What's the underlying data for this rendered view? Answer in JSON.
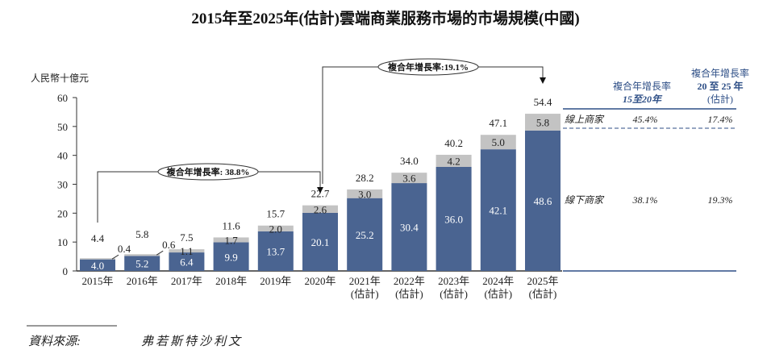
{
  "chart_data": {
    "type": "bar",
    "stacked": true,
    "title": "2015年至2025年(估計)雲端商業服務市場的市場規模(中國)",
    "ylabel": "人民幣十億元",
    "ylim": [
      0,
      60
    ],
    "yticks": [
      0,
      10,
      20,
      30,
      40,
      50,
      60
    ],
    "grid": false,
    "categories": [
      "2015年",
      "2016年",
      "2017年",
      "2018年",
      "2019年",
      "2020年",
      "2021年\n(估計)",
      "2022年\n(估計)",
      "2023年\n(估計)",
      "2024年\n(估計)",
      "2025年\n(估計)"
    ],
    "category_lines": [
      [
        "2015年"
      ],
      [
        "2016年"
      ],
      [
        "2017年"
      ],
      [
        "2018年"
      ],
      [
        "2019年"
      ],
      [
        "2020年"
      ],
      [
        "2021年",
        "(估計)"
      ],
      [
        "2022年",
        "(估計)"
      ],
      [
        "2023年",
        "(估計)"
      ],
      [
        "2024年",
        "(估計)"
      ],
      [
        "2025年",
        "(估計)"
      ]
    ],
    "series": [
      {
        "name": "線下商家",
        "color": "#4a6491",
        "values": [
          4.0,
          5.2,
          6.4,
          9.9,
          13.7,
          20.1,
          25.2,
          30.4,
          36.0,
          42.1,
          48.6
        ]
      },
      {
        "name": "線上商家",
        "color": "#c3c3c3",
        "values": [
          0.4,
          0.6,
          1.1,
          1.7,
          2.0,
          2.6,
          3.0,
          3.6,
          4.2,
          5.0,
          5.8
        ]
      }
    ],
    "totals": [
      4.4,
      5.8,
      7.5,
      11.6,
      15.7,
      22.7,
      28.2,
      34.0,
      40.2,
      47.1,
      54.4
    ],
    "annotations": [
      {
        "label": "複合年增長率: 38.8%",
        "from": "2015年",
        "to": "2020年"
      },
      {
        "label": "複合年增長率:19.1%",
        "from": "2020年",
        "to": "2025年"
      }
    ]
  },
  "cagr_table": {
    "header_1": [
      "複合年增長率",
      "15至20年"
    ],
    "header_2": [
      "複合年增長率",
      "20 至 25 年",
      "(估計)"
    ],
    "rows": [
      {
        "label": "線上商家",
        "v1": "45.4%",
        "v2": "17.4%"
      },
      {
        "label": "線下商家",
        "v1": "38.1%",
        "v2": "19.3%"
      }
    ]
  },
  "source": {
    "label": "資料來源:",
    "value": "弗若斯特沙利文"
  }
}
